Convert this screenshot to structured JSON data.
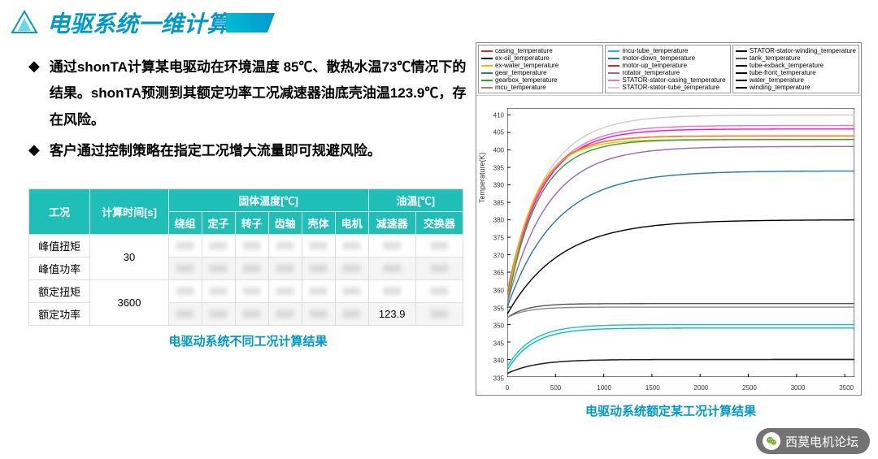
{
  "title": "电驱系统一维计算",
  "bullets": [
    "通过shonTA计算某电驱动在环境温度 85℃、散热水温73℃情况下的结果。shonTA预测到其额定功率工况减速器油底壳油温123.9℃，存在风险。",
    "客户通过控制策略在指定工况增大流量即可规避风险。"
  ],
  "table": {
    "h_case": "工况",
    "h_time": "计算时间[s]",
    "h_solid": "固体温度[℃]",
    "h_oil": "油温[℃]",
    "cols": [
      "绕组",
      "定子",
      "转子",
      "齿轴",
      "壳体",
      "电机",
      "减速器",
      "交换器"
    ],
    "rows": [
      {
        "case": "峰值扭矩",
        "time": "30",
        "vals": [
          "██",
          "██",
          "██",
          "██",
          "██",
          "██",
          "██",
          "██"
        ]
      },
      {
        "case": "峰值功率",
        "time": "",
        "vals": [
          "██",
          "██",
          "██",
          "██",
          "██",
          "██",
          "██",
          "██"
        ]
      },
      {
        "case": "额定扭矩",
        "time": "3600",
        "vals": [
          "██",
          "██",
          "██",
          "██",
          "██",
          "██",
          "██",
          "██"
        ]
      },
      {
        "case": "额定功率",
        "time": "",
        "vals": [
          "██",
          "██",
          "██",
          "██",
          "██",
          "██",
          "123.9",
          "██"
        ]
      }
    ],
    "caption": "电驱动系统不同工况计算结果"
  },
  "chart": {
    "caption": "电驱动系统额定某工况计算结果",
    "ylabel": "Temperature(K)",
    "ylim": [
      335,
      412
    ],
    "yticks": [
      335,
      340,
      345,
      350,
      355,
      360,
      365,
      370,
      375,
      380,
      385,
      390,
      395,
      400,
      405,
      410
    ],
    "xlim": [
      0,
      3600
    ],
    "xticks": [
      0,
      500,
      1000,
      1500,
      2000,
      2500,
      3000,
      3500
    ],
    "legend_cols": [
      [
        {
          "label": "casing_temperature",
          "color": "#d62728"
        },
        {
          "label": "ex-oil_temperature",
          "color": "#000000"
        },
        {
          "label": "ex-water_temperature",
          "color": "#e6c200"
        },
        {
          "label": "gear_temperature",
          "color": "#1f77b4"
        },
        {
          "label": "gearbox_temperature",
          "color": "#2ca02c"
        },
        {
          "label": "mcu_temperature",
          "color": "#888888"
        }
      ],
      [
        {
          "label": "mcu-tube_temperature",
          "color": "#17becf"
        },
        {
          "label": "motor-down_temperature",
          "color": "#1f77b4"
        },
        {
          "label": "motor-up_temperature",
          "color": "#d62728"
        },
        {
          "label": "rotator_temperature",
          "color": "#9467bd"
        },
        {
          "label": "STATOR-stator-casing_temperature",
          "color": "#e377c2"
        },
        {
          "label": "STATOR-stator-tube_temperature",
          "color": "#cccccc"
        }
      ],
      [
        {
          "label": "STATOR-stator-winding_temperature",
          "color": "#000000"
        },
        {
          "label": "tank_temperature",
          "color": "#555555"
        },
        {
          "label": "tube-exback_temperature",
          "color": "#000000"
        },
        {
          "label": "tube-front_temperature",
          "color": "#000000"
        },
        {
          "label": "water_temperature",
          "color": "#000000"
        },
        {
          "label": "winding_temperature",
          "color": "#000000"
        }
      ]
    ],
    "series": [
      {
        "color": "#cccccc",
        "y0": 360,
        "yf": 410,
        "tau": 380
      },
      {
        "color": "#e377c2",
        "y0": 359,
        "yf": 407,
        "tau": 360
      },
      {
        "color": "#ff00ff",
        "y0": 358,
        "yf": 406,
        "tau": 350
      },
      {
        "color": "#d62728",
        "y0": 358,
        "yf": 404,
        "tau": 300
      },
      {
        "color": "#ff7f0e",
        "y0": 357,
        "yf": 404,
        "tau": 300
      },
      {
        "color": "#e6c200",
        "y0": 357,
        "yf": 403,
        "tau": 280
      },
      {
        "color": "#2ca02c",
        "y0": 356,
        "yf": 403,
        "tau": 320
      },
      {
        "color": "#9467bd",
        "y0": 356,
        "yf": 401,
        "tau": 420
      },
      {
        "color": "#1f77b4",
        "y0": 355,
        "yf": 394,
        "tau": 500
      },
      {
        "color": "#000000",
        "y0": 353,
        "yf": 380,
        "tau": 550
      },
      {
        "color": "#555555",
        "y0": 352,
        "yf": 356,
        "tau": 200
      },
      {
        "color": "#888888",
        "y0": 352,
        "yf": 355,
        "tau": 200
      },
      {
        "color": "#17becf",
        "y0": 338,
        "yf": 350,
        "tau": 260
      },
      {
        "color": "#00bfbf",
        "y0": 337,
        "yf": 349,
        "tau": 260
      },
      {
        "color": "#444444",
        "y0": 336,
        "yf": 340,
        "tau": 300
      },
      {
        "color": "#222222",
        "y0": 336,
        "yf": 340,
        "tau": 300
      }
    ]
  },
  "footer": "西莫电机论坛"
}
